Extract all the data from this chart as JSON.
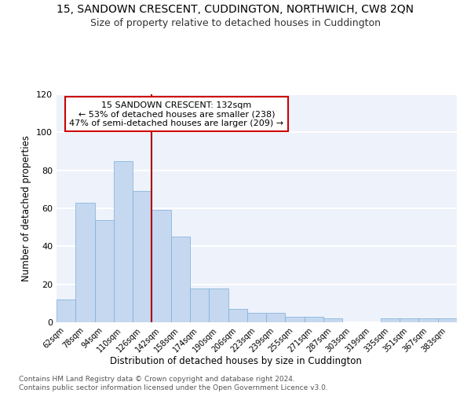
{
  "title": "15, SANDOWN CRESCENT, CUDDINGTON, NORTHWICH, CW8 2QN",
  "subtitle": "Size of property relative to detached houses in Cuddington",
  "xlabel": "Distribution of detached houses by size in Cuddington",
  "ylabel": "Number of detached properties",
  "bar_values": [
    12,
    63,
    54,
    85,
    69,
    59,
    45,
    18,
    18,
    7,
    5,
    5,
    3,
    3,
    2,
    0,
    0,
    2,
    2,
    2,
    2
  ],
  "categories": [
    "62sqm",
    "78sqm",
    "94sqm",
    "110sqm",
    "126sqm",
    "142sqm",
    "158sqm",
    "174sqm",
    "190sqm",
    "206sqm",
    "223sqm",
    "239sqm",
    "255sqm",
    "271sqm",
    "287sqm",
    "303sqm",
    "319sqm",
    "335sqm",
    "351sqm",
    "367sqm",
    "383sqm"
  ],
  "bar_color": "#c5d8f0",
  "bar_edge_color": "#7aaed6",
  "vline_color": "#aa0000",
  "annotation_text": "15 SANDOWN CRESCENT: 132sqm\n← 53% of detached houses are smaller (238)\n47% of semi-detached houses are larger (209) →",
  "annotation_box_color": "white",
  "annotation_box_edge": "#cc0000",
  "ylim": [
    0,
    120
  ],
  "yticks": [
    0,
    20,
    40,
    60,
    80,
    100,
    120
  ],
  "background_color": "#eef2fb",
  "grid_color": "white",
  "footer": "Contains HM Land Registry data © Crown copyright and database right 2024.\nContains public sector information licensed under the Open Government Licence v3.0.",
  "title_fontsize": 10,
  "subtitle_fontsize": 9,
  "xlabel_fontsize": 8.5,
  "ylabel_fontsize": 8.5,
  "annotation_fontsize": 8,
  "footer_fontsize": 6.5,
  "tick_fontsize": 7,
  "ytick_fontsize": 8
}
